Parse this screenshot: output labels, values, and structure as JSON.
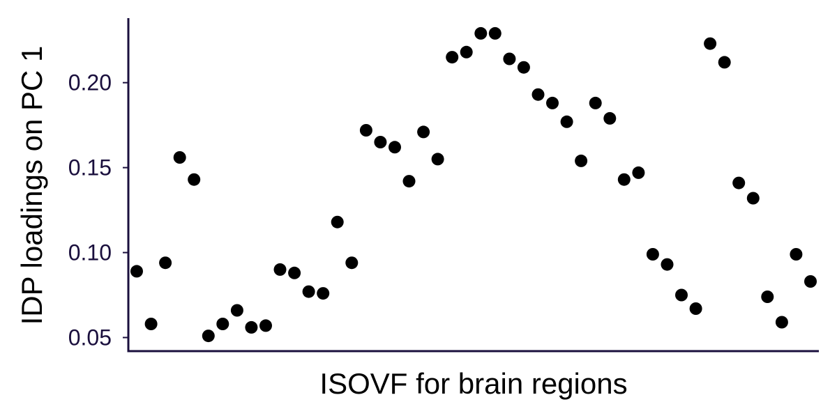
{
  "chart_data": {
    "type": "scatter",
    "xlabel": "ISOVF for brain regions",
    "ylabel": "IDP loadings on PC 1",
    "x_ticks_shown": false,
    "ylim": [
      0.042,
      0.238
    ],
    "y_ticks": [
      0.05,
      0.1,
      0.15,
      0.2
    ],
    "y_tick_labels": [
      "0.05",
      "0.10",
      "0.15",
      "0.20"
    ],
    "grid": false,
    "legend": "none",
    "point_color": "#000000",
    "axis_color": "#1a0f3d",
    "x": [
      1,
      2,
      3,
      4,
      5,
      6,
      7,
      8,
      9,
      10,
      11,
      12,
      13,
      14,
      15,
      16,
      17,
      18,
      19,
      20,
      21,
      22,
      23,
      24,
      25,
      26,
      27,
      28,
      29,
      30,
      31,
      32,
      33,
      34,
      35,
      36,
      37,
      38,
      39,
      40,
      41,
      42,
      43,
      44,
      45,
      46,
      47,
      48
    ],
    "values": [
      0.089,
      0.058,
      0.094,
      0.156,
      0.143,
      0.051,
      0.058,
      0.066,
      0.056,
      0.057,
      0.09,
      0.088,
      0.077,
      0.076,
      0.118,
      0.094,
      0.172,
      0.165,
      0.162,
      0.142,
      0.171,
      0.155,
      0.215,
      0.218,
      0.229,
      0.229,
      0.214,
      0.209,
      0.193,
      0.188,
      0.177,
      0.154,
      0.188,
      0.179,
      0.143,
      0.147,
      0.099,
      0.093,
      0.075,
      0.067,
      0.223,
      0.212,
      0.141,
      0.132,
      0.074,
      0.059,
      0.099,
      0.083
    ]
  }
}
